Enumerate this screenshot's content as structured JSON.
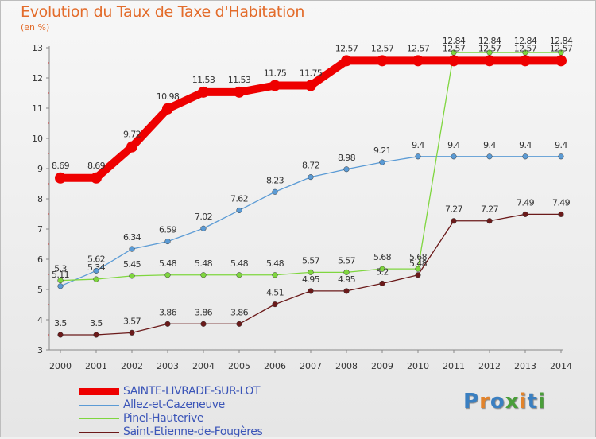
{
  "header": {
    "title": "Evolution du Taux de Taxe d'Habitation",
    "unit": "(en %)"
  },
  "logo": {
    "text": "Proxiti",
    "letter_colors": [
      "#3a7fc1",
      "#e2832b",
      "#3a7fc1",
      "#4a9e3a",
      "#e2832b",
      "#3a7fc1",
      "#4a9e3a"
    ]
  },
  "chart_data": {
    "type": "line",
    "title": "Evolution du Taux de Taxe d'Habitation",
    "ylabel": "(en %)",
    "x": [
      "2000",
      "2001",
      "2002",
      "2003",
      "2004",
      "2005",
      "2006",
      "2007",
      "2008",
      "2009",
      "2010",
      "2011",
      "2012",
      "2013",
      "2014"
    ],
    "yticks": [
      "3",
      "4",
      "5",
      "6",
      "7",
      "8",
      "9",
      "10",
      "11",
      "12",
      "13"
    ],
    "ylim": [
      3,
      13
    ],
    "grid": false,
    "legend_position": "bottom-left",
    "series": [
      {
        "name": "SAINTE-LIVRADE-SUR-LOT",
        "color": "#ee0000",
        "thick": true,
        "values": [
          8.69,
          8.69,
          9.72,
          10.98,
          11.53,
          11.53,
          11.75,
          11.75,
          12.57,
          12.57,
          12.57,
          12.57,
          12.57,
          12.57,
          12.57
        ],
        "labels": [
          "8.69",
          "8.69",
          "9.72",
          "10.98",
          "11.53",
          "11.53",
          "11.75",
          "11.75",
          "12.57",
          "12.57",
          "12.57",
          "12.57",
          "12.57",
          "12.57",
          "12.57"
        ]
      },
      {
        "name": "Allez-et-Cazeneuve",
        "color": "#5b9bd5",
        "thick": false,
        "values": [
          5.11,
          5.62,
          6.34,
          6.59,
          7.02,
          7.62,
          8.23,
          8.72,
          8.98,
          9.21,
          9.4,
          9.4,
          9.4,
          9.4,
          9.4
        ],
        "labels": [
          "5.11",
          "5.62",
          "6.34",
          "6.59",
          "7.02",
          "7.62",
          "8.23",
          "8.72",
          "8.98",
          "9.21",
          "9.4",
          "9.4",
          "9.4",
          "9.4",
          "9.4"
        ]
      },
      {
        "name": "Pinel-Hauterive",
        "color": "#7fd63f",
        "thick": false,
        "values": [
          5.3,
          5.34,
          5.45,
          5.48,
          5.48,
          5.48,
          5.48,
          5.57,
          5.57,
          5.68,
          5.68,
          12.84,
          12.84,
          12.84,
          12.84
        ],
        "labels": [
          "5.3",
          "5.34",
          "5.45",
          "5.48",
          "5.48",
          "5.48",
          "5.48",
          "5.57",
          "5.57",
          "5.68",
          "5.68",
          "12.84",
          "12.84",
          "12.84",
          "12.84"
        ]
      },
      {
        "name": "Saint-Etienne-de-Fougères",
        "color": "#6b1a1a",
        "thick": false,
        "values": [
          3.5,
          3.5,
          3.57,
          3.86,
          3.86,
          3.86,
          4.51,
          4.95,
          4.95,
          5.2,
          5.48,
          7.27,
          7.27,
          7.49,
          7.49
        ],
        "labels": [
          "3.5",
          "3.5",
          "3.57",
          "3.86",
          "3.86",
          "3.86",
          "4.51",
          "4.95",
          "4.95",
          "5.2",
          "5.48",
          "7.27",
          "7.27",
          "7.49",
          "7.49"
        ]
      }
    ]
  }
}
